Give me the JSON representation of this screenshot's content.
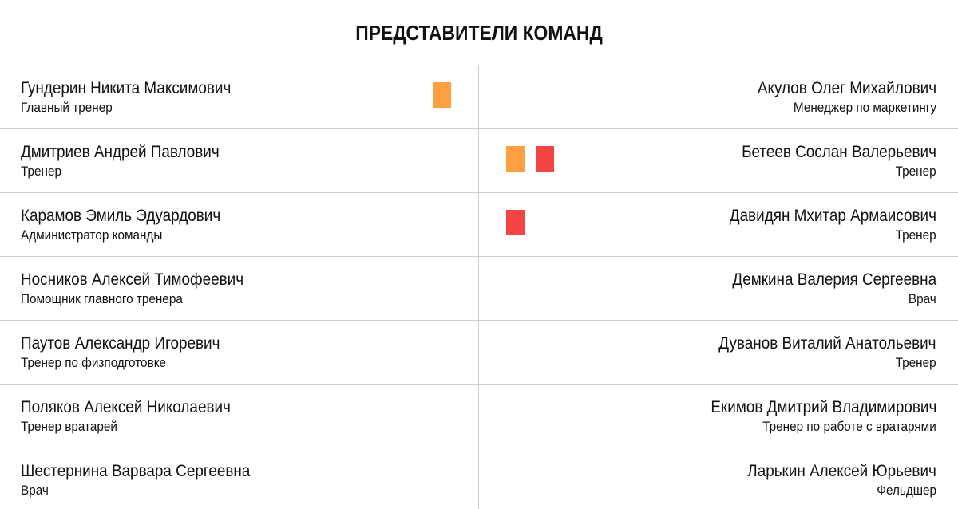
{
  "title": "ПРЕДСТАВИТЕЛИ КОМАНД",
  "rows": [
    {
      "left": {
        "name": "Гундерин Никита Максимович",
        "role": "Главный тренер"
      },
      "right": {
        "name": "Акулов Олег Михайлович",
        "role": "Менеджер по маркетингу"
      }
    },
    {
      "left": {
        "name": "Дмитриев Андрей Павлович",
        "role": "Тренер"
      },
      "right": {
        "name": "Бетеев Сослан Валерьевич",
        "role": "Тренер"
      }
    },
    {
      "left": {
        "name": "Карамов Эмиль Эдуардович",
        "role": "Администратор команды"
      },
      "right": {
        "name": "Давидян Мхитар Армаисович",
        "role": "Тренер"
      }
    },
    {
      "left": {
        "name": "Носников Алексей Тимофеевич",
        "role": "Помощник главного тренера"
      },
      "right": {
        "name": "Демкина Валерия Сергеевна",
        "role": "Врач"
      }
    },
    {
      "left": {
        "name": "Паутов Александр Игоревич",
        "role": "Тренер по физподготовке"
      },
      "right": {
        "name": "Дуванов Виталий Анатольевич",
        "role": "Тренер"
      }
    },
    {
      "left": {
        "name": "Поляков Алексей Николаевич",
        "role": "Тренер вратарей"
      },
      "right": {
        "name": "Екимов Дмитрий Владимирович",
        "role": "Тренер по работе с вратарями"
      }
    },
    {
      "left": {
        "name": "Шестернина Варвара Сергеевна",
        "role": "Врач"
      },
      "right": {
        "name": "Ларькин Алексей Юрьевич",
        "role": "Фельдшер"
      }
    }
  ],
  "cards": {
    "yellow_color": "#ffa040",
    "red_color": "#f44444"
  }
}
